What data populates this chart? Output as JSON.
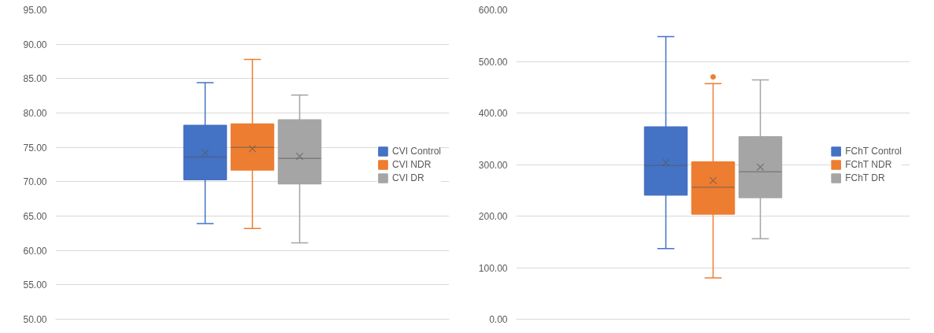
{
  "chart_data": [
    {
      "type": "box",
      "categories": [
        null
      ],
      "ylim": [
        50,
        95
      ],
      "yticks": [
        {
          "value": 50,
          "label": "50.00"
        },
        {
          "value": 55,
          "label": "55.00"
        },
        {
          "value": 60,
          "label": "60.00"
        },
        {
          "value": 65,
          "label": "65.00"
        },
        {
          "value": 70,
          "label": "70.00"
        },
        {
          "value": 75,
          "label": "75.00"
        },
        {
          "value": 80,
          "label": "80.00"
        },
        {
          "value": 85,
          "label": "85.00"
        },
        {
          "value": 90,
          "label": "90.00"
        },
        {
          "value": 95,
          "label": "95.00"
        }
      ],
      "grid": "y",
      "legend": "right",
      "series": [
        {
          "name": "CVI Control",
          "color": "#4472c4",
          "boxes": [
            {
              "low": 63.9,
              "q1": 70.3,
              "median": 73.6,
              "q3": 78.2,
              "high": 84.4,
              "mean": 74.2
            }
          ]
        },
        {
          "name": "CVI NDR",
          "color": "#ed7d31",
          "boxes": [
            {
              "low": 63.2,
              "q1": 71.7,
              "median": 75.0,
              "q3": 78.4,
              "high": 87.8,
              "mean": 74.8
            }
          ]
        },
        {
          "name": "CVI DR",
          "color": "#a5a5a5",
          "boxes": [
            {
              "low": 61.1,
              "q1": 69.7,
              "median": 73.4,
              "q3": 79.0,
              "high": 82.6,
              "mean": 73.7
            }
          ]
        }
      ]
    },
    {
      "type": "box",
      "categories": [
        null
      ],
      "ylim": [
        0,
        600
      ],
      "yticks": [
        {
          "value": 0,
          "label": "0.00"
        },
        {
          "value": 100,
          "label": "100.00"
        },
        {
          "value": 200,
          "label": "200.00"
        },
        {
          "value": 300,
          "label": "300.00"
        },
        {
          "value": 400,
          "label": "400.00"
        },
        {
          "value": 500,
          "label": "500.00"
        },
        {
          "value": 600,
          "label": "600.00"
        }
      ],
      "grid": "y",
      "legend": "right",
      "series": [
        {
          "name": "FChT Control",
          "color": "#4472c4",
          "boxes": [
            {
              "low": 137,
              "q1": 241,
              "median": 298,
              "q3": 373,
              "high": 548,
              "mean": 304
            }
          ]
        },
        {
          "name": "FChT NDR",
          "color": "#ed7d31",
          "boxes": [
            {
              "low": 80,
              "q1": 204,
              "median": 256,
              "q3": 305,
              "high": 457,
              "mean": 269,
              "outliers": [
                470
              ]
            }
          ]
        },
        {
          "name": "FChT DR",
          "color": "#a5a5a5",
          "boxes": [
            {
              "low": 156,
              "q1": 236,
              "median": 286,
              "q3": 354,
              "high": 464,
              "mean": 295
            }
          ]
        }
      ]
    }
  ]
}
